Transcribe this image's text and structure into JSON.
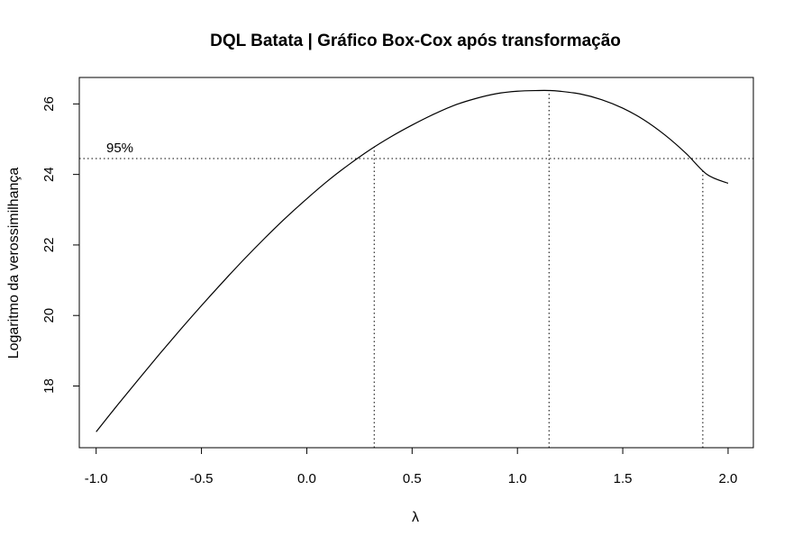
{
  "chart_data": {
    "type": "line",
    "title": "DQL Batata | Gráfico Box-Cox após transformação",
    "xlabel": "λ",
    "ylabel": "Logaritmo da verossimilhança",
    "xlim": [
      -1.08,
      2.12
    ],
    "ylim": [
      16.25,
      26.75
    ],
    "x_ticks": [
      -1.0,
      -0.5,
      0.0,
      0.5,
      1.0,
      1.5,
      2.0
    ],
    "x_tick_labels": [
      "-1.0",
      "-0.5",
      "0.0",
      "0.5",
      "1.0",
      "1.5",
      "2.0"
    ],
    "y_ticks": [
      18,
      20,
      22,
      24,
      26
    ],
    "y_tick_labels": [
      "18",
      "20",
      "22",
      "24",
      "26"
    ],
    "grid": false,
    "series": [
      {
        "x": [
          -1.0,
          -0.9,
          -0.8,
          -0.7,
          -0.6,
          -0.5,
          -0.4,
          -0.3,
          -0.2,
          -0.1,
          0.0,
          0.1,
          0.2,
          0.3,
          0.4,
          0.5,
          0.6,
          0.7,
          0.8,
          0.9,
          1.0,
          1.1,
          1.15,
          1.2,
          1.3,
          1.4,
          1.5,
          1.6,
          1.7,
          1.8,
          1.9,
          2.0
        ],
        "y": [
          16.7,
          17.45,
          18.18,
          18.9,
          19.6,
          20.28,
          20.94,
          21.58,
          22.19,
          22.77,
          23.31,
          23.82,
          24.28,
          24.7,
          25.07,
          25.4,
          25.7,
          25.96,
          26.15,
          26.29,
          26.36,
          26.38,
          26.38,
          26.36,
          26.28,
          26.12,
          25.88,
          25.55,
          25.12,
          24.6,
          24.0,
          23.75
        ]
      }
    ],
    "annotations": {
      "ci_label": "95%",
      "ci_level_y": 24.45,
      "lambda_lower": 0.32,
      "lambda_hat": 1.15,
      "lambda_upper": 1.88
    }
  }
}
